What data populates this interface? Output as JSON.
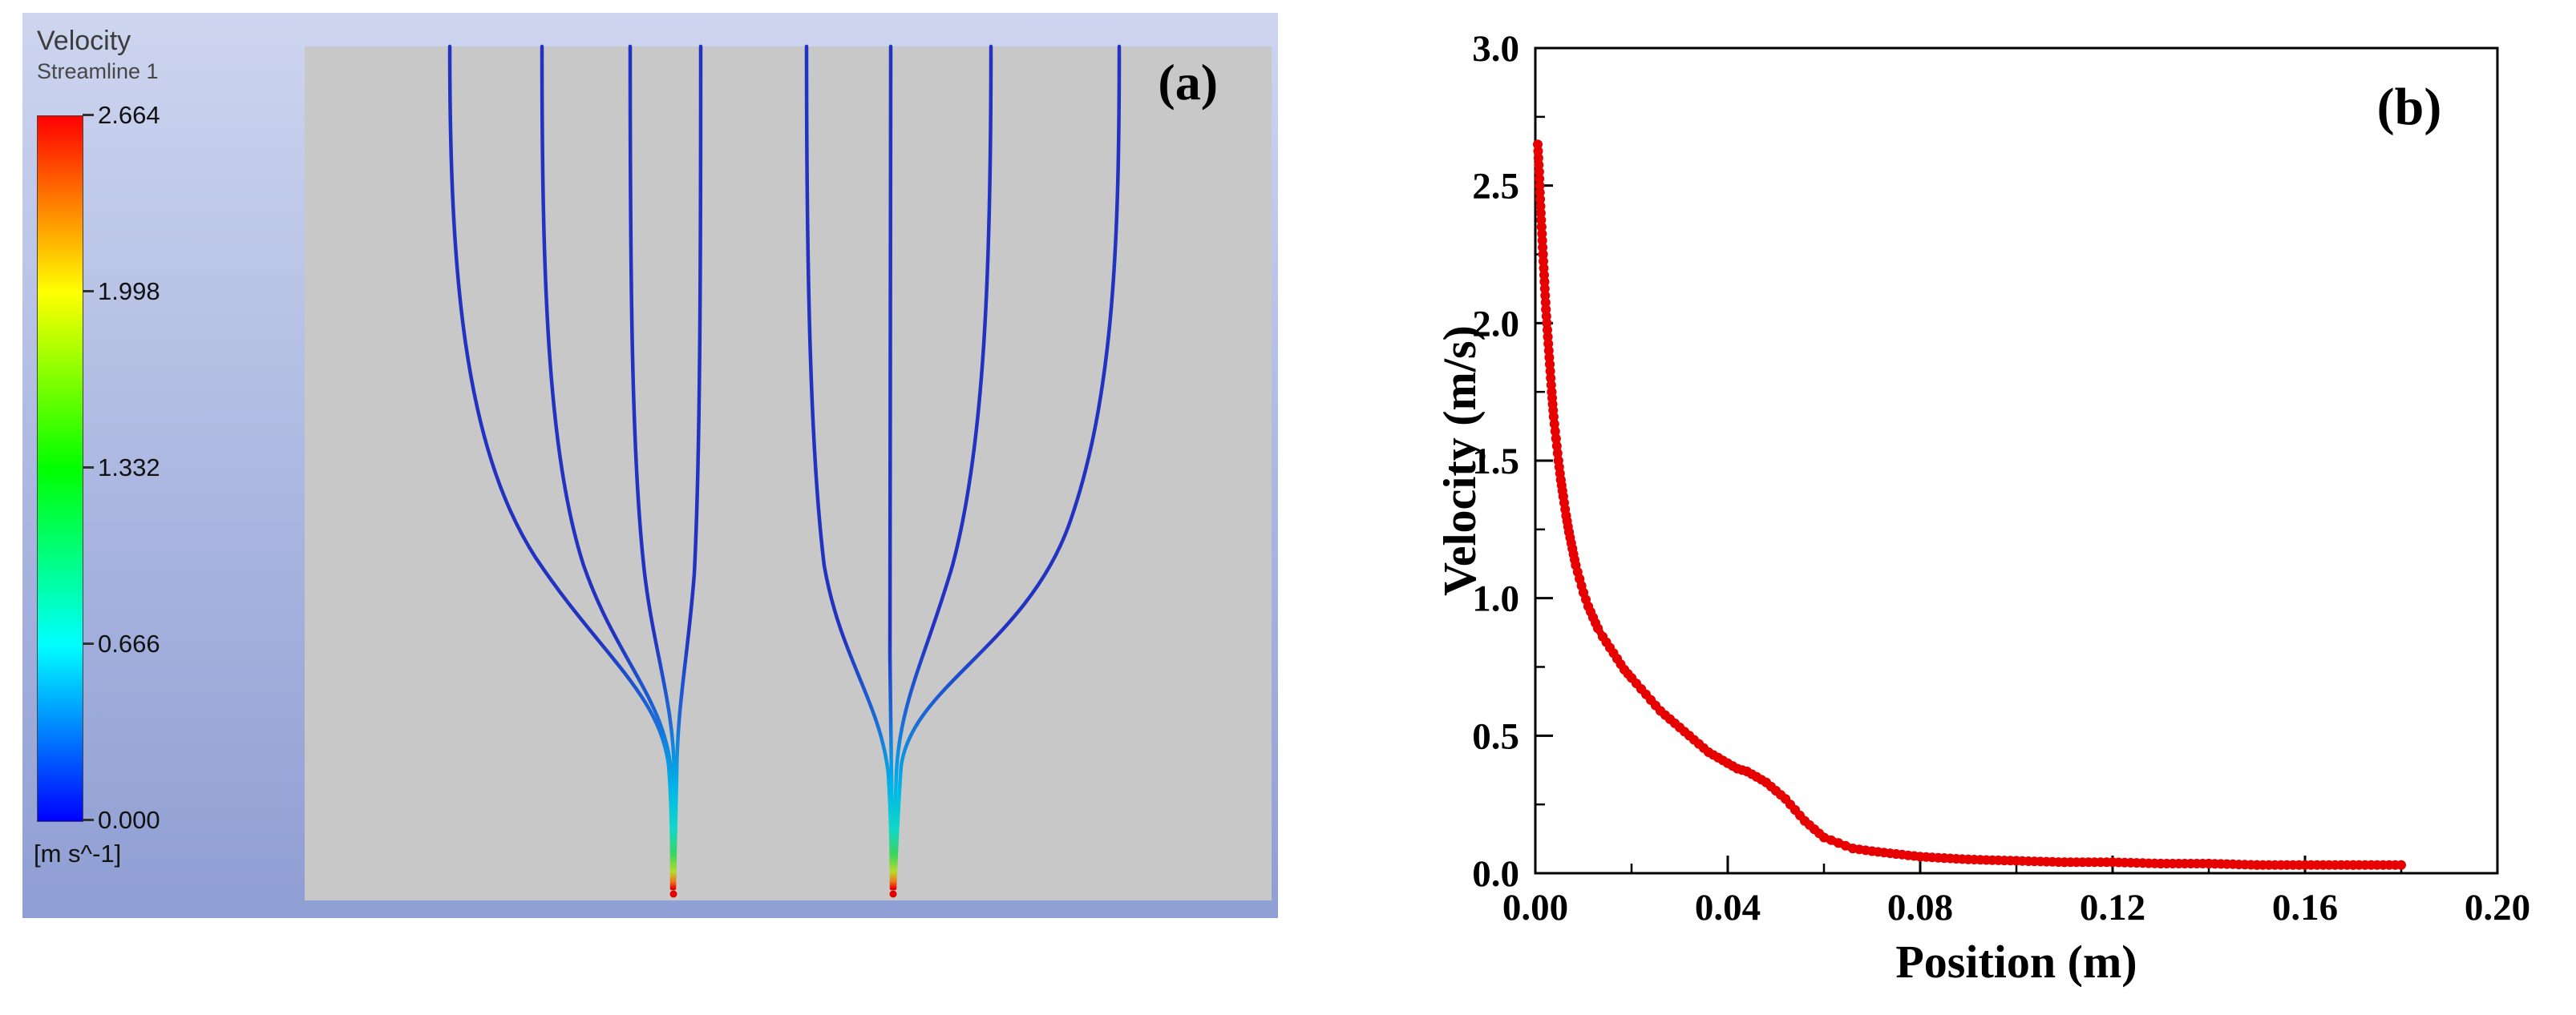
{
  "figure": {
    "panel_a": {
      "label": "(a)",
      "legend": {
        "title": "Velocity",
        "subtitle": "Streamline 1",
        "tick_values": [
          "2.664",
          "1.998",
          "1.332",
          "0.666",
          "0.000"
        ],
        "units": "[m s^-1]",
        "colorbar_colors": [
          "#ff0000",
          "#ffff00",
          "#00ff00",
          "#00ffff",
          "#0000ff"
        ]
      },
      "background_color": "#aab6e0",
      "viewport_color": "#c8c8c8",
      "streamline_base_color": "#2133c0",
      "jet_tip_color": "#e00000",
      "streamlines": [
        "M533,42 C533,320 550,540 640,680 C720,800 795,850 806,940 C810,990 810,1045 810,1093",
        "M648,42 C648,330 655,550 700,690 C740,805 800,855 809,945 C812,995 812,1045 811,1093",
        "M758,42 C758,340 760,560 776,700 C788,800 812,860 813,950 C814,1000 813,1048 812,1093",
        "M846,42 C846,340 845,560 838,700 C830,805 817,860 816,950 C815,1000 814,1048 813,1093",
        "M978,42 C978,330 983,550 1000,690 C1020,805 1070,860 1080,950 C1083,1000 1084,1048 1084,1093",
        "M1083,42 C1083,350 1080,600 1082,800 C1083,900 1085,990 1085,1093",
        "M1208,42 C1208,320 1200,540 1160,690 C1128,800 1094,860 1090,950 C1088,1000 1087,1048 1086,1093",
        "M1368,42 C1368,280 1362,480 1305,640 C1250,790 1110,840 1096,940 C1092,995 1090,1048 1088,1093"
      ],
      "jet_tips": [
        [
          812,
          1100
        ],
        [
          1086,
          1100
        ]
      ]
    },
    "panel_b": {
      "label": "(b)"
    }
  },
  "chart_data": {
    "type": "scatter",
    "title": "",
    "xlabel": "Position (m)",
    "ylabel": "Velocity (m/s)",
    "xlim": [
      0.0,
      0.2
    ],
    "ylim": [
      0.0,
      3.0
    ],
    "x_ticks": [
      "0.00",
      "0.04",
      "0.08",
      "0.12",
      "0.16",
      "0.20"
    ],
    "y_ticks": [
      "0.0",
      "0.5",
      "1.0",
      "1.5",
      "2.0",
      "2.5",
      "3.0"
    ],
    "x_minor_ticks": [
      0.02,
      0.06,
      0.1,
      0.14,
      0.18
    ],
    "y_minor_ticks": [
      0.25,
      0.75,
      1.25,
      1.75,
      2.25,
      2.75
    ],
    "grid": false,
    "legend": "none",
    "marker": "circle",
    "series": [
      {
        "name": "Velocity",
        "color": "#e60000",
        "points": [
          [
            0.0005,
            2.65
          ],
          [
            0.0008,
            2.55
          ],
          [
            0.001,
            2.45
          ],
          [
            0.0013,
            2.35
          ],
          [
            0.0016,
            2.25
          ],
          [
            0.0019,
            2.15
          ],
          [
            0.0022,
            2.05
          ],
          [
            0.0026,
            1.95
          ],
          [
            0.003,
            1.85
          ],
          [
            0.0034,
            1.75
          ],
          [
            0.0038,
            1.66
          ],
          [
            0.0043,
            1.58
          ],
          [
            0.0048,
            1.5
          ],
          [
            0.0053,
            1.43
          ],
          [
            0.0058,
            1.37
          ],
          [
            0.0064,
            1.3
          ],
          [
            0.007,
            1.24
          ],
          [
            0.0077,
            1.18
          ],
          [
            0.0084,
            1.12
          ],
          [
            0.0092,
            1.07
          ],
          [
            0.01,
            1.02
          ],
          [
            0.011,
            0.97
          ],
          [
            0.012,
            0.93
          ],
          [
            0.013,
            0.89
          ],
          [
            0.014,
            0.86
          ],
          [
            0.0155,
            0.82
          ],
          [
            0.017,
            0.78
          ],
          [
            0.0185,
            0.74
          ],
          [
            0.02,
            0.71
          ],
          [
            0.022,
            0.67
          ],
          [
            0.024,
            0.63
          ],
          [
            0.026,
            0.59
          ],
          [
            0.028,
            0.56
          ],
          [
            0.03,
            0.53
          ],
          [
            0.032,
            0.5
          ],
          [
            0.034,
            0.47
          ],
          [
            0.036,
            0.44
          ],
          [
            0.038,
            0.42
          ],
          [
            0.04,
            0.4
          ],
          [
            0.042,
            0.38
          ],
          [
            0.044,
            0.37
          ],
          [
            0.046,
            0.35
          ],
          [
            0.048,
            0.33
          ],
          [
            0.05,
            0.3
          ],
          [
            0.052,
            0.27
          ],
          [
            0.054,
            0.23
          ],
          [
            0.056,
            0.19
          ],
          [
            0.058,
            0.16
          ],
          [
            0.06,
            0.13
          ],
          [
            0.063,
            0.11
          ],
          [
            0.066,
            0.09
          ],
          [
            0.07,
            0.08
          ],
          [
            0.075,
            0.07
          ],
          [
            0.08,
            0.06
          ],
          [
            0.085,
            0.055
          ],
          [
            0.09,
            0.05
          ],
          [
            0.1,
            0.045
          ],
          [
            0.11,
            0.04
          ],
          [
            0.12,
            0.04
          ],
          [
            0.13,
            0.035
          ],
          [
            0.14,
            0.035
          ],
          [
            0.15,
            0.03
          ],
          [
            0.16,
            0.03
          ],
          [
            0.17,
            0.03
          ],
          [
            0.18,
            0.03
          ]
        ]
      }
    ]
  }
}
